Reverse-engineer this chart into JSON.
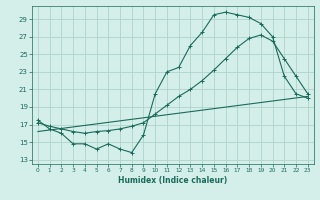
{
  "xlabel": "Humidex (Indice chaleur)",
  "bg_color": "#d4eeea",
  "grid_color": "#aed4cc",
  "line_color": "#1a6b5a",
  "xlim": [
    -0.5,
    23.5
  ],
  "ylim": [
    12.5,
    30.5
  ],
  "yticks": [
    13,
    15,
    17,
    19,
    21,
    23,
    25,
    27,
    29
  ],
  "xticks": [
    0,
    1,
    2,
    3,
    4,
    5,
    6,
    7,
    8,
    9,
    10,
    11,
    12,
    13,
    14,
    15,
    16,
    17,
    18,
    19,
    20,
    21,
    22,
    23
  ],
  "curve1_x": [
    0,
    1,
    2,
    3,
    4,
    5,
    6,
    7,
    8,
    9,
    10,
    11,
    12,
    13,
    14,
    15,
    16,
    17,
    18,
    19,
    20,
    21,
    22,
    23
  ],
  "curve1_y": [
    17.5,
    16.5,
    16.0,
    14.8,
    14.8,
    14.2,
    14.8,
    14.2,
    13.8,
    15.8,
    20.5,
    23.0,
    23.5,
    26.0,
    27.5,
    29.5,
    29.8,
    29.5,
    29.2,
    28.5,
    27.0,
    22.5,
    20.5,
    20.0
  ],
  "trend1_x": [
    0,
    1,
    2,
    3,
    4,
    5,
    6,
    7,
    8,
    9,
    10,
    11,
    12,
    13,
    14,
    15,
    16,
    17,
    18,
    19,
    20,
    21,
    22,
    23
  ],
  "trend1_y": [
    17.2,
    16.8,
    16.5,
    16.2,
    16.0,
    16.2,
    16.3,
    16.5,
    16.8,
    17.2,
    18.2,
    19.2,
    20.2,
    21.0,
    22.0,
    23.2,
    24.5,
    25.8,
    26.8,
    27.2,
    26.5,
    24.5,
    22.5,
    20.5
  ],
  "trend2_x": [
    0,
    23
  ],
  "trend2_y": [
    16.2,
    20.2
  ]
}
